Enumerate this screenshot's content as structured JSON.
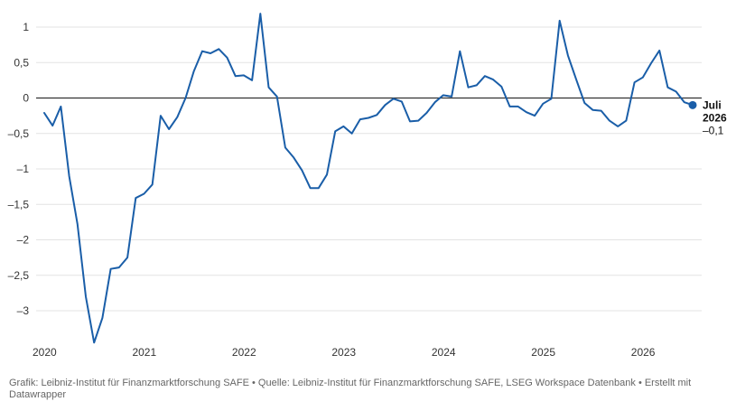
{
  "chart_data": {
    "type": "line",
    "title": "",
    "xlabel": "",
    "ylabel": "",
    "ylim": [
      -3.5,
      1.1
    ],
    "xlim": [
      "2020-01",
      "2026-07"
    ],
    "y_ticks": [
      1,
      0.5,
      0,
      -0.5,
      -1,
      -1.5,
      -2,
      -2.5,
      -3
    ],
    "y_tick_labels": [
      "1",
      "0,5",
      "0",
      "–0,5",
      "–1",
      "–1,5",
      "–2",
      "–2,5",
      "–3"
    ],
    "x_ticks": [
      "2020-01",
      "2021-01",
      "2022-01",
      "2023-01",
      "2024-01",
      "2025-01",
      "2026-01"
    ],
    "x_tick_labels": [
      "2020",
      "2021",
      "2022",
      "2023",
      "2024",
      "2025",
      "2026"
    ],
    "grid": true,
    "zero_line": true,
    "color": "#1a5ea8",
    "series": [
      {
        "x": [
          "2020-01",
          "2020-02",
          "2020-03",
          "2020-04",
          "2020-05",
          "2020-06",
          "2020-07",
          "2020-08",
          "2020-09",
          "2020-10",
          "2020-11",
          "2020-12",
          "2021-01",
          "2021-02",
          "2021-03",
          "2021-04",
          "2021-05",
          "2021-06",
          "2021-07",
          "2021-08",
          "2021-09",
          "2021-10",
          "2021-11",
          "2021-12",
          "2022-01",
          "2022-02",
          "2022-03",
          "2022-04",
          "2022-05",
          "2022-06",
          "2022-07",
          "2022-08",
          "2022-09",
          "2022-10",
          "2022-11",
          "2022-12",
          "2023-01",
          "2023-02",
          "2023-03",
          "2023-04",
          "2023-05",
          "2023-06",
          "2023-07",
          "2023-08",
          "2023-09",
          "2023-10",
          "2023-11",
          "2023-12",
          "2024-01",
          "2024-02",
          "2024-03",
          "2024-04",
          "2024-05",
          "2024-06",
          "2024-07",
          "2024-08",
          "2024-09",
          "2024-10",
          "2024-11",
          "2024-12",
          "2025-01",
          "2025-02",
          "2025-03",
          "2025-04",
          "2025-05",
          "2025-06",
          "2025-07",
          "2025-08",
          "2025-09",
          "2025-10",
          "2025-11",
          "2025-12",
          "2026-01",
          "2026-02",
          "2026-03",
          "2026-04",
          "2026-05",
          "2026-06",
          "2026-07"
        ],
        "values": [
          -0.21,
          -0.39,
          -0.12,
          -1.1,
          -1.78,
          -2.8,
          -3.45,
          -3.1,
          -2.41,
          -2.39,
          -2.25,
          -1.41,
          -1.35,
          -1.22,
          -0.25,
          -0.44,
          -0.27,
          0.0,
          0.38,
          0.66,
          0.63,
          0.69,
          0.57,
          0.31,
          0.32,
          0.25,
          1.19,
          0.15,
          0.02,
          -0.7,
          -0.84,
          -1.02,
          -1.27,
          -1.27,
          -1.08,
          -0.47,
          -0.4,
          -0.5,
          -0.3,
          -0.28,
          -0.24,
          -0.1,
          -0.01,
          -0.05,
          -0.33,
          -0.32,
          -0.21,
          -0.06,
          0.04,
          0.02,
          0.66,
          0.15,
          0.18,
          0.31,
          0.26,
          0.16,
          -0.12,
          -0.12,
          -0.2,
          -0.25,
          -0.08,
          -0.01,
          1.09,
          0.6,
          0.26,
          -0.07,
          -0.17,
          -0.18,
          -0.32,
          -0.4,
          -0.32,
          0.22,
          0.29,
          0.49,
          0.67,
          0.15,
          0.09,
          -0.06,
          -0.1
        ]
      }
    ],
    "end_label": {
      "month": "Juli",
      "year": "2026",
      "value_text": "–0,1"
    }
  },
  "footer": {
    "text": "Grafik: Leibniz-Institut für Finanzmarktforschung SAFE • Quelle: Leibniz-Institut für Finanzmarktforschung SAFE, LSEG Workspace Datenbank • Erstellt mit Datawrapper"
  }
}
